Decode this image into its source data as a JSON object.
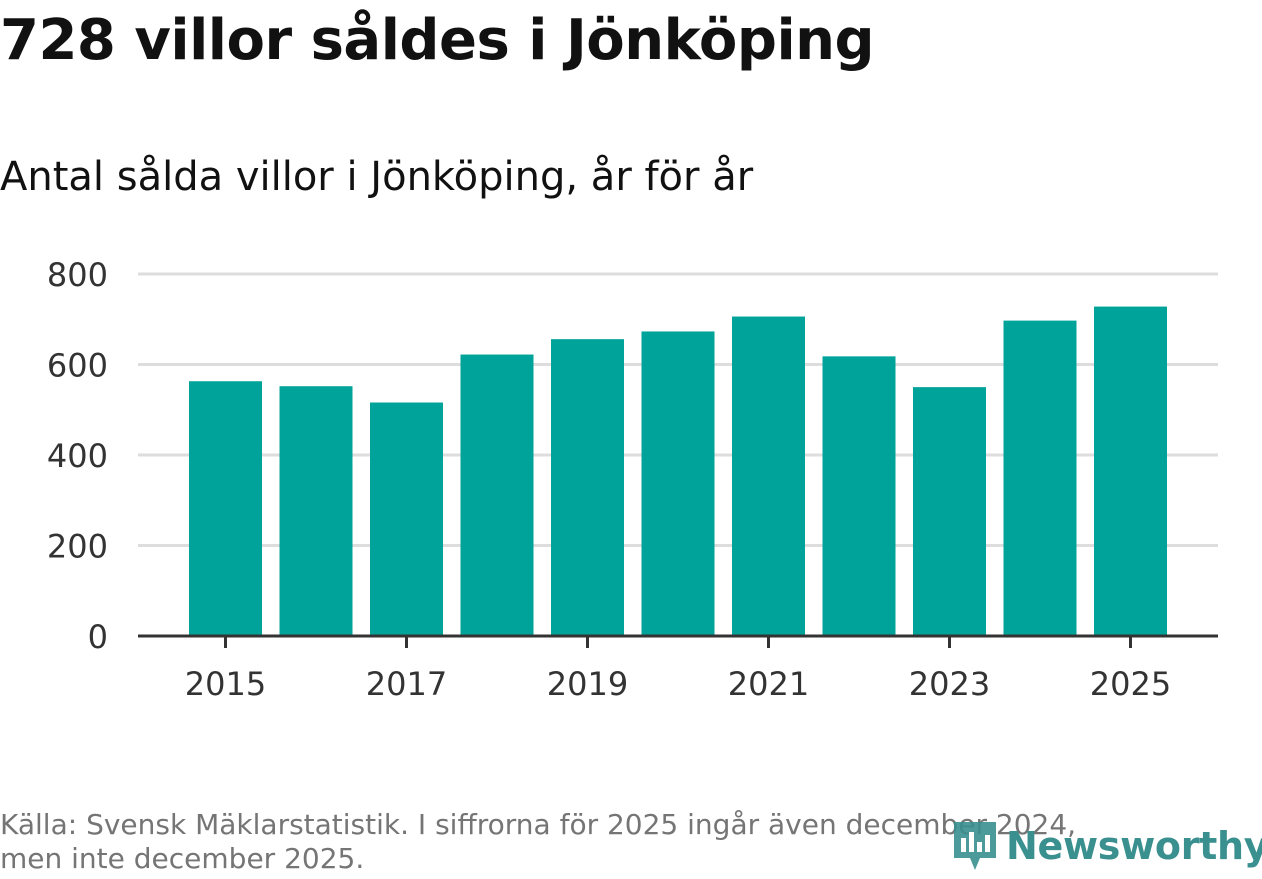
{
  "chart_data": {
    "type": "bar",
    "title": "728 villor såldes i Jönköping",
    "subtitle": "Antal sålda villor i Jönköping, år för år",
    "categories": [
      "2015",
      "2016",
      "2017",
      "2018",
      "2019",
      "2020",
      "2021",
      "2022",
      "2023",
      "2024",
      "2025"
    ],
    "values": [
      563,
      552,
      516,
      622,
      656,
      673,
      706,
      618,
      550,
      697,
      728
    ],
    "x_tick_labels": [
      "2015",
      "2017",
      "2019",
      "2021",
      "2023",
      "2025"
    ],
    "y_ticks": [
      "0",
      "200",
      "400",
      "600",
      "800"
    ],
    "ylim": [
      0,
      800
    ],
    "xlabel": "",
    "ylabel": "",
    "grid": true,
    "bar_color": "#00a39a"
  },
  "footer": {
    "source_line1": "Källa: Svensk Mäklarstatistik. I siffrorna för 2025 ingår även december 2024,",
    "source_line2": "men inte december 2025."
  },
  "brand": {
    "name": "Newsworthy",
    "icon": "newsworthy-logo-icon",
    "color": "#3a8f8f"
  }
}
